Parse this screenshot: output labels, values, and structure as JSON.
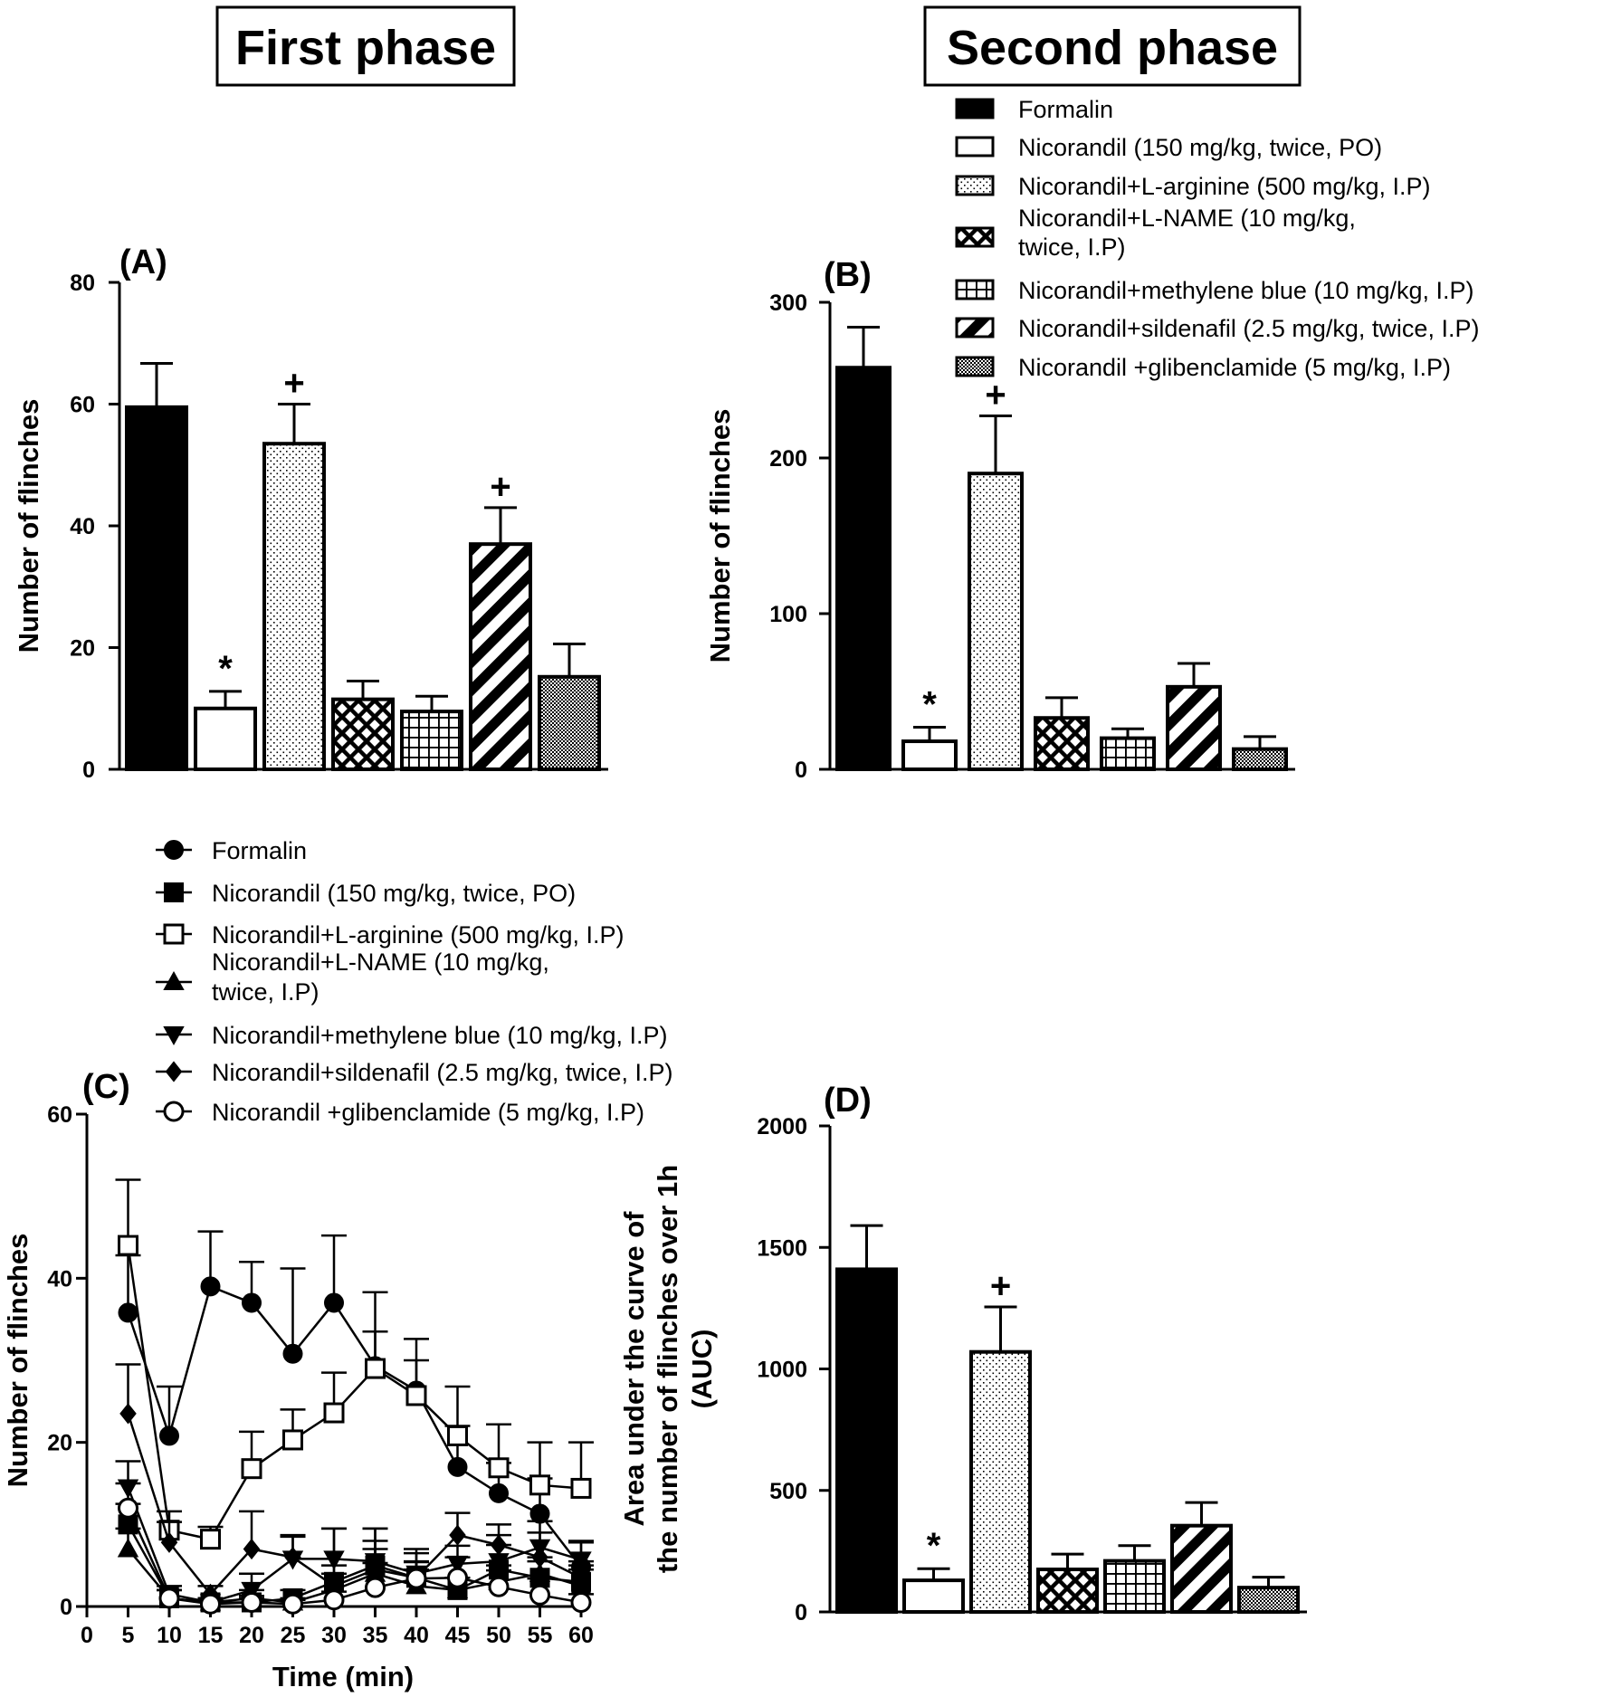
{
  "phase_titles": {
    "first": "First phase",
    "second": "Second phase"
  },
  "series_names": [
    "Formalin",
    "Nicorandil (150 mg/kg, twice, PO)",
    "Nicorandil+L-arginine (500 mg/kg, I.P)",
    "Nicorandil+L-NAME (10 mg/kg, twice, I.P)",
    "Nicorandil+methylene blue (10 mg/kg, I.P)",
    "Nicorandil+sildenafil (2.5 mg/kg, twice, I.P)",
    "Nicorandil +glibenclamide (5 mg/kg, I.P)"
  ],
  "legend_bar": {
    "items": [
      {
        "label": [
          "Formalin"
        ],
        "pattern": "solid"
      },
      {
        "label": [
          "Nicorandil (150 mg/kg, twice, PO)"
        ],
        "pattern": "white"
      },
      {
        "label": [
          "Nicorandil+L-arginine (500 mg/kg, I.P)"
        ],
        "pattern": "dots"
      },
      {
        "label": [
          "Nicorandil+L-NAME (10 mg/kg,",
          "twice, I.P)"
        ],
        "pattern": "cross"
      },
      {
        "label": [
          "Nicorandil+methylene blue (10 mg/kg, I.P)"
        ],
        "pattern": "grid"
      },
      {
        "label": [
          "Nicorandil+sildenafil (2.5 mg/kg, twice, I.P)"
        ],
        "pattern": "diag"
      },
      {
        "label": [
          "Nicorandil +glibenclamide (5 mg/kg, I.P)"
        ],
        "pattern": "fine"
      }
    ]
  },
  "legend_line": {
    "items": [
      {
        "label": [
          "Formalin"
        ],
        "marker": "circle-filled"
      },
      {
        "label": [
          "Nicorandil (150 mg/kg, twice, PO)"
        ],
        "marker": "square-filled"
      },
      {
        "label": [
          "Nicorandil+L-arginine (500 mg/kg, I.P)"
        ],
        "marker": "square-open"
      },
      {
        "label": [
          "Nicorandil+L-NAME (10 mg/kg,",
          "twice, I.P)"
        ],
        "marker": "triangle-up"
      },
      {
        "label": [
          "Nicorandil+methylene blue (10 mg/kg, I.P)"
        ],
        "marker": "triangle-down"
      },
      {
        "label": [
          "Nicorandil+sildenafil (2.5 mg/kg, twice, I.P)"
        ],
        "marker": "diamond"
      },
      {
        "label": [
          "Nicorandil +glibenclamide (5 mg/kg, I.P)"
        ],
        "marker": "circle-open"
      }
    ]
  },
  "chart_data": [
    {
      "id": "A",
      "type": "bar",
      "panel_label": "(A)",
      "title": "First phase",
      "ylabel": "Number of flinches",
      "ylim": [
        0,
        80
      ],
      "yticks": [
        0,
        20,
        40,
        60,
        80
      ],
      "patterns": [
        "solid",
        "white",
        "dots",
        "cross",
        "grid",
        "diag",
        "fine"
      ],
      "values": [
        59.5,
        10,
        53.5,
        11.5,
        9.5,
        37,
        15.2
      ],
      "errors": [
        7.2,
        2.8,
        6.5,
        3,
        2.5,
        6,
        5.4
      ],
      "annotations": [
        "",
        "*",
        "+",
        "",
        "",
        "+",
        ""
      ]
    },
    {
      "id": "B",
      "type": "bar",
      "panel_label": "(B)",
      "title": "Second phase",
      "ylabel": "Number of flinches",
      "ylim": [
        0,
        300
      ],
      "yticks": [
        0,
        100,
        200,
        300
      ],
      "patterns": [
        "solid",
        "white",
        "dots",
        "cross",
        "grid",
        "diag",
        "fine"
      ],
      "values": [
        258,
        18,
        190,
        33,
        20,
        53,
        13
      ],
      "errors": [
        26,
        9,
        37,
        13,
        6,
        15,
        8
      ],
      "annotations": [
        "",
        "*",
        "+",
        "",
        "",
        "",
        ""
      ]
    },
    {
      "id": "C",
      "type": "line",
      "panel_label": "(C)",
      "xlabel": "Time (min)",
      "ylabel": "Number of flinches",
      "xlim": [
        0,
        60
      ],
      "ylim": [
        0,
        60
      ],
      "xticks": [
        0,
        5,
        10,
        15,
        20,
        25,
        30,
        35,
        40,
        45,
        50,
        55,
        60
      ],
      "yticks": [
        0,
        20,
        40,
        60
      ],
      "x": [
        5,
        10,
        15,
        20,
        25,
        30,
        35,
        40,
        45,
        50,
        55,
        60
      ],
      "series": [
        {
          "name": "Formalin",
          "marker": "circle-filled",
          "values": [
            35.8,
            20.8,
            39,
            37,
            30.8,
            37,
            29.3,
            26.3,
            17,
            13.8,
            11.3,
            4.8
          ],
          "errors": [
            7,
            6,
            6.7,
            5,
            10.4,
            8.2,
            9,
            6.3,
            5,
            3.7,
            4.3,
            3
          ]
        },
        {
          "name": "Nicorandil (150 mg/kg, twice, PO)",
          "marker": "square-filled",
          "values": [
            10,
            1,
            0.5,
            0.5,
            1,
            3,
            5,
            3.5,
            2,
            4.5,
            3.5,
            3
          ],
          "errors": [
            2.5,
            1,
            0.5,
            0.8,
            1,
            2,
            3,
            2,
            1.5,
            3,
            2,
            2
          ]
        },
        {
          "name": "Nicorandil+L-arginine (500 mg/kg, I.P)",
          "marker": "square-open",
          "values": [
            44,
            9.3,
            8.2,
            16.8,
            20.3,
            23.6,
            29,
            25.7,
            20.8,
            16.9,
            14.8,
            14.4
          ],
          "errors": [
            8,
            2.3,
            1.5,
            4.5,
            3.7,
            4.9,
            4.5,
            4.3,
            6,
            5.3,
            5.2,
            5.6
          ]
        },
        {
          "name": "Nicorandil+L-NAME (10 mg/kg, twice, I.P)",
          "marker": "triangle-up",
          "values": [
            7,
            1,
            0.5,
            1,
            0.5,
            2,
            4,
            2.5,
            2,
            3,
            4,
            2.5
          ],
          "errors": [
            2.5,
            1,
            0.5,
            1,
            0.5,
            2,
            3,
            2,
            1.5,
            2,
            2,
            2
          ]
        },
        {
          "name": "Nicorandil+methylene blue (10 mg/kg, I.P)",
          "marker": "triangle-down",
          "values": [
            14.5,
            1.5,
            0.5,
            2,
            5.8,
            5.8,
            5.5,
            4,
            5.2,
            5.5,
            7.2,
            5.7
          ],
          "errors": [
            3.2,
            1,
            0.5,
            2,
            2.7,
            3.7,
            4,
            2.5,
            2.2,
            3.2,
            3.2,
            2.3
          ]
        },
        {
          "name": "Nicorandil+sildenafil (2.5 mg/kg, twice, I.P)",
          "marker": "diamond",
          "values": [
            23.5,
            7.8,
            1.5,
            7,
            6,
            2.5,
            4.5,
            3.5,
            8.7,
            7.5,
            6,
            3.5
          ],
          "errors": [
            6,
            2.5,
            1,
            4.6,
            2.7,
            7,
            5,
            3.5,
            2.7,
            2.5,
            3,
            2
          ]
        },
        {
          "name": "Nicorandil +glibenclamide (5 mg/kg, I.P)",
          "marker": "circle-open",
          "values": [
            12,
            1,
            0.3,
            0.5,
            0.3,
            0.8,
            2.3,
            3.4,
            3.5,
            2.4,
            1.4,
            0.5
          ],
          "errors": [
            3,
            1,
            0.5,
            0.5,
            0.5,
            1,
            3,
            2,
            2.5,
            2,
            2,
            1
          ]
        }
      ]
    },
    {
      "id": "D",
      "type": "bar",
      "panel_label": "(D)",
      "ylabel_lines": [
        "Area under the curve of",
        "the number of flinches over 1h",
        "(AUC)"
      ],
      "ylim": [
        0,
        2000
      ],
      "yticks": [
        0,
        500,
        1000,
        1500,
        2000
      ],
      "patterns": [
        "solid",
        "white",
        "dots",
        "cross",
        "grid",
        "diag",
        "fine"
      ],
      "values": [
        1410,
        130,
        1070,
        175,
        210,
        355,
        100
      ],
      "errors": [
        180,
        48,
        185,
        63,
        63,
        95,
        43
      ],
      "annotations": [
        "",
        "*",
        "+",
        "",
        "",
        "",
        ""
      ]
    }
  ]
}
